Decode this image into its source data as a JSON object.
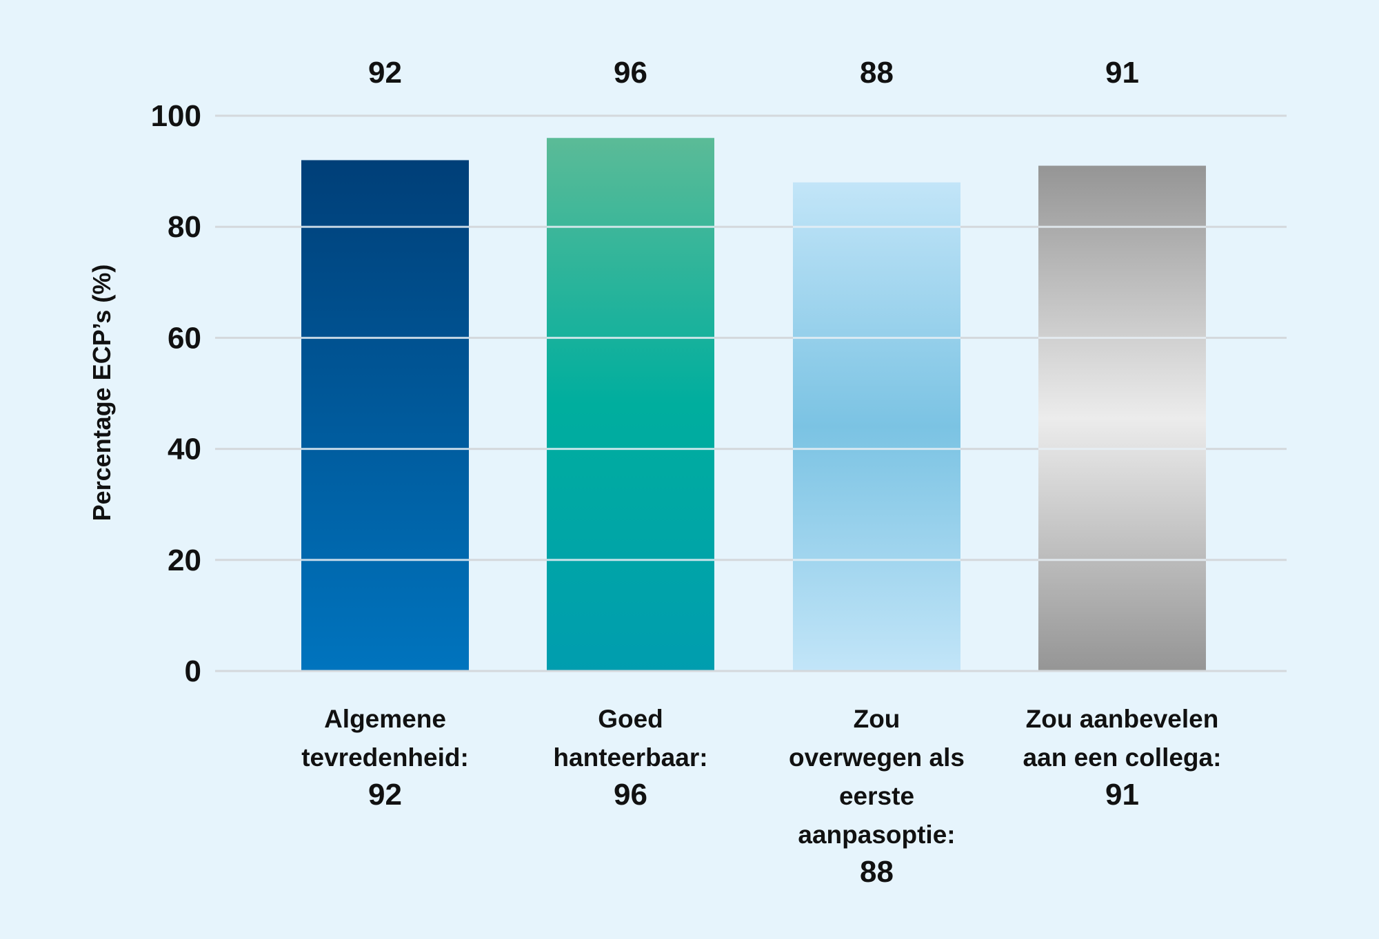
{
  "chart_data": {
    "type": "bar",
    "title": "",
    "xlabel": "",
    "ylabel": "Percentage ECP’s (%)",
    "ylim": [
      0,
      100
    ],
    "yticks": [
      0,
      20,
      40,
      60,
      80,
      100
    ],
    "grid": true,
    "legend": "none",
    "categories": [
      "Algemene tevredenheid: 92",
      "Goed hanteerbaar: 96",
      "Zou overwegen als eerste aanpasoptie: 88",
      "Zou aanbevelen aan een collega: 91"
    ],
    "category_lines": [
      [
        "Algemene",
        "tevredenheid:",
        "92"
      ],
      [
        "Goed",
        "hanteerbaar:",
        "96"
      ],
      [
        "Zou",
        "overwegen als",
        "eerste",
        "aanpasoptie:",
        "88"
      ],
      [
        "Zou aanbevelen",
        "aan een collega:",
        "91"
      ]
    ],
    "values": [
      92,
      96,
      88,
      91
    ],
    "data_labels": [
      "92",
      "96",
      "88",
      "91"
    ],
    "bar_colors": [
      {
        "top": "#003f78",
        "bottom": "#0074be"
      },
      {
        "top": "#5bbb97",
        "mid": "#00ae9e",
        "bottom": "#009daf"
      },
      {
        "top": "#c2e5f8",
        "mid": "#7bc3e3",
        "bottom": "#c2e5f8"
      },
      {
        "top": "#959595",
        "mid": "#ececec",
        "bottom": "#959595"
      }
    ],
    "background": "#e6f4fc",
    "gridline_color": "#d4d8dc"
  }
}
